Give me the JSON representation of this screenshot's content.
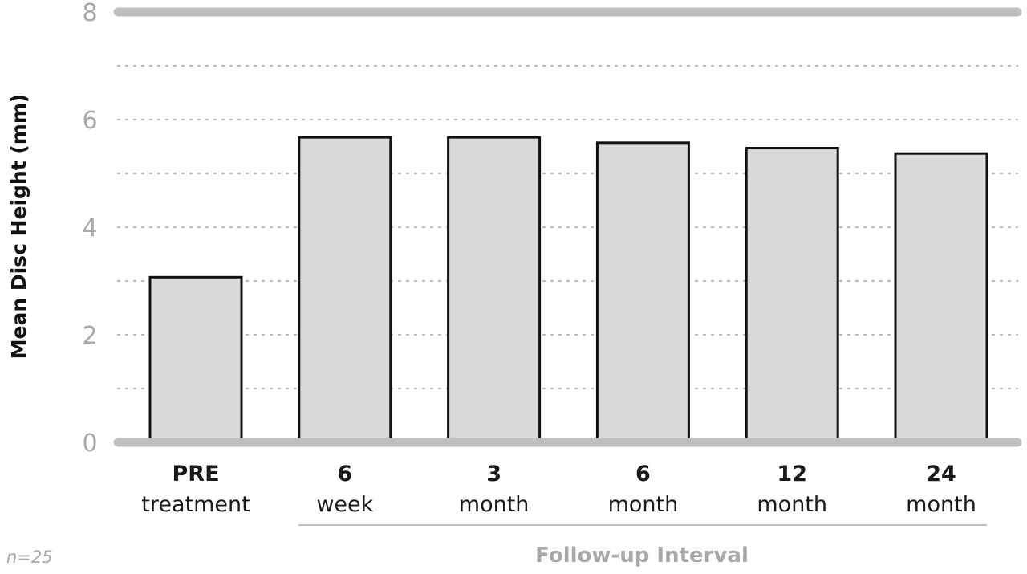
{
  "chart_data": {
    "type": "bar",
    "ylabel": "Mean Disc Height (mm)",
    "ylim": [
      0,
      8
    ],
    "yticks": [
      "0",
      "2",
      "4",
      "6",
      "8"
    ],
    "grid": "dotted horizontal",
    "categories": [
      {
        "top": "PRE",
        "bottom": "treatment"
      },
      {
        "top": "6",
        "bottom": "week"
      },
      {
        "top": "3",
        "bottom": "month"
      },
      {
        "top": "6",
        "bottom": "month"
      },
      {
        "top": "12",
        "bottom": "month"
      },
      {
        "top": "24",
        "bottom": "month"
      }
    ],
    "values": [
      3.07,
      5.67,
      5.67,
      5.57,
      5.47,
      5.37
    ],
    "group_label": "Follow-up Interval",
    "note": "n=25",
    "colors": {
      "bar_fill": "#d9d9d9",
      "bar_stroke": "#111111",
      "axis": "#bfbfbf",
      "grid": "#bcbcbc",
      "muted_text": "#a8a8a8"
    }
  }
}
